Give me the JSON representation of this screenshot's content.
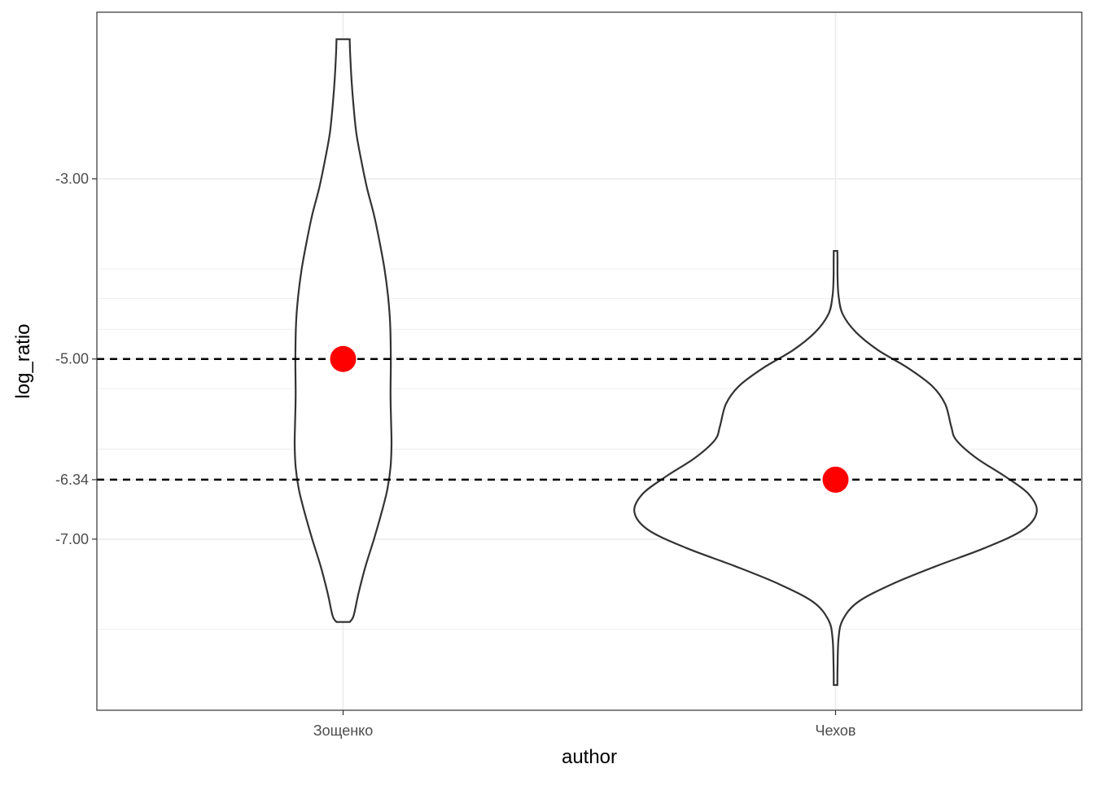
{
  "chart_data": {
    "type": "violin",
    "title": "",
    "xlabel": "author",
    "ylabel": "log_ratio",
    "categories": [
      "Зощенко",
      "Чехов"
    ],
    "ylim": [
      -8.9,
      -1.15
    ],
    "y_ticks": [
      {
        "value": -3.0,
        "label": "-3.00"
      },
      {
        "value": -5.0,
        "label": "-5.00"
      },
      {
        "value": -6.34,
        "label": "-6.34"
      },
      {
        "value": -7.0,
        "label": "-7.00"
      }
    ],
    "minor_gridlines": [
      -4.0,
      -4.33,
      -4.67,
      -5.33,
      -6.0,
      -8.0
    ],
    "reference_lines": [
      {
        "value": -5.0,
        "style": "dashed"
      },
      {
        "value": -6.34,
        "style": "dashed"
      }
    ],
    "grid": true,
    "points": [
      {
        "category": "Зощенко",
        "value": -5.0,
        "color": "#ff0000"
      },
      {
        "category": "Чехов",
        "value": -6.34,
        "color": "#ff0000"
      }
    ],
    "violins": [
      {
        "category": "Зощенко",
        "profile": [
          [
            -1.45,
            0.047
          ],
          [
            -1.6,
            0.05
          ],
          [
            -1.9,
            0.06
          ],
          [
            -2.2,
            0.075
          ],
          [
            -2.5,
            0.095
          ],
          [
            -2.8,
            0.13
          ],
          [
            -3.1,
            0.17
          ],
          [
            -3.4,
            0.22
          ],
          [
            -3.7,
            0.26
          ],
          [
            -4.0,
            0.295
          ],
          [
            -4.3,
            0.32
          ],
          [
            -4.6,
            0.335
          ],
          [
            -5.0,
            0.34
          ],
          [
            -5.4,
            0.338
          ],
          [
            -5.7,
            0.342
          ],
          [
            -5.95,
            0.345
          ],
          [
            -6.2,
            0.338
          ],
          [
            -6.45,
            0.315
          ],
          [
            -6.7,
            0.275
          ],
          [
            -7.0,
            0.22
          ],
          [
            -7.3,
            0.16
          ],
          [
            -7.6,
            0.11
          ],
          [
            -7.85,
            0.075
          ],
          [
            -7.92,
            0.047
          ]
        ]
      },
      {
        "category": "Чехов",
        "profile": [
          [
            -3.8,
            0.018
          ],
          [
            -3.9,
            0.019
          ],
          [
            -4.1,
            0.02
          ],
          [
            -4.3,
            0.03
          ],
          [
            -4.5,
            0.07
          ],
          [
            -4.7,
            0.2
          ],
          [
            -4.9,
            0.42
          ],
          [
            -5.1,
            0.72
          ],
          [
            -5.3,
            0.96
          ],
          [
            -5.5,
            1.09
          ],
          [
            -5.75,
            1.15
          ],
          [
            -5.9,
            1.2
          ],
          [
            -6.1,
            1.4
          ],
          [
            -6.3,
            1.68
          ],
          [
            -6.5,
            1.92
          ],
          [
            -6.7,
            2.0
          ],
          [
            -6.9,
            1.86
          ],
          [
            -7.1,
            1.48
          ],
          [
            -7.3,
            1.0
          ],
          [
            -7.5,
            0.56
          ],
          [
            -7.7,
            0.22
          ],
          [
            -7.9,
            0.07
          ],
          [
            -8.1,
            0.03
          ],
          [
            -8.4,
            0.02
          ],
          [
            -8.62,
            0.018
          ]
        ]
      }
    ]
  }
}
